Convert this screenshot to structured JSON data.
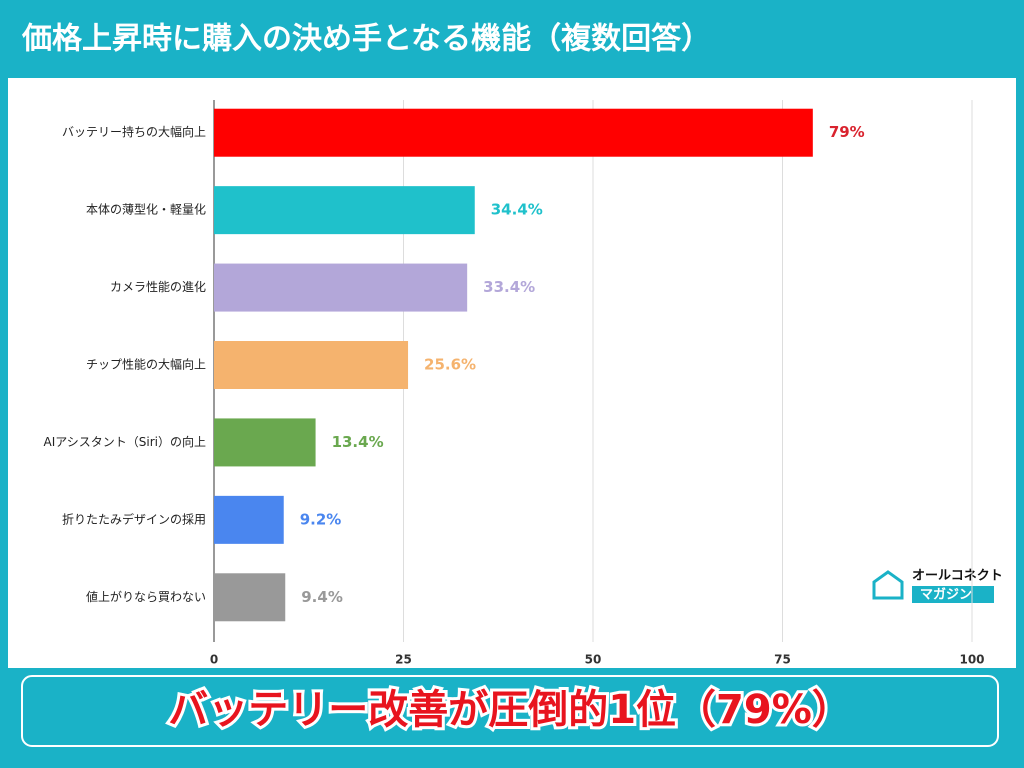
{
  "chart_data": {
    "type": "bar",
    "orientation": "horizontal",
    "title": "価格上昇時に購入の決め手となる機能（複数回答）",
    "categories": [
      "バッテリー持ちの大幅向上",
      "本体の薄型化・軽量化",
      "カメラ性能の進化",
      "チップ性能の大幅向上",
      "AIアシスタント（Siri）の向上",
      "折りたたみデザインの採用",
      "値上がりなら買わない"
    ],
    "values": [
      79,
      34.4,
      33.4,
      25.6,
      13.4,
      9.2,
      9.4
    ],
    "value_labels": [
      "79%",
      "34.4%",
      "33.4%",
      "25.6%",
      "13.4%",
      "9.2%",
      "9.4%"
    ],
    "colors": [
      "#ff0000",
      "#1fc1cb",
      "#b3a7d9",
      "#f5b36e",
      "#6aa84f",
      "#4a86ef",
      "#999999"
    ],
    "label_colors": [
      "#d9232e",
      "#1fc1cb",
      "#b3a7d9",
      "#f5b36e",
      "#6aa84f",
      "#4a86ef",
      "#999999"
    ],
    "xlim": [
      0,
      100
    ],
    "xticks": [
      0,
      25,
      50,
      75,
      100
    ],
    "grid": true,
    "annotation": "バッテリー改善が圧倒的1位（79%）",
    "watermark": [
      "オールコネクト",
      "マガジン"
    ]
  }
}
